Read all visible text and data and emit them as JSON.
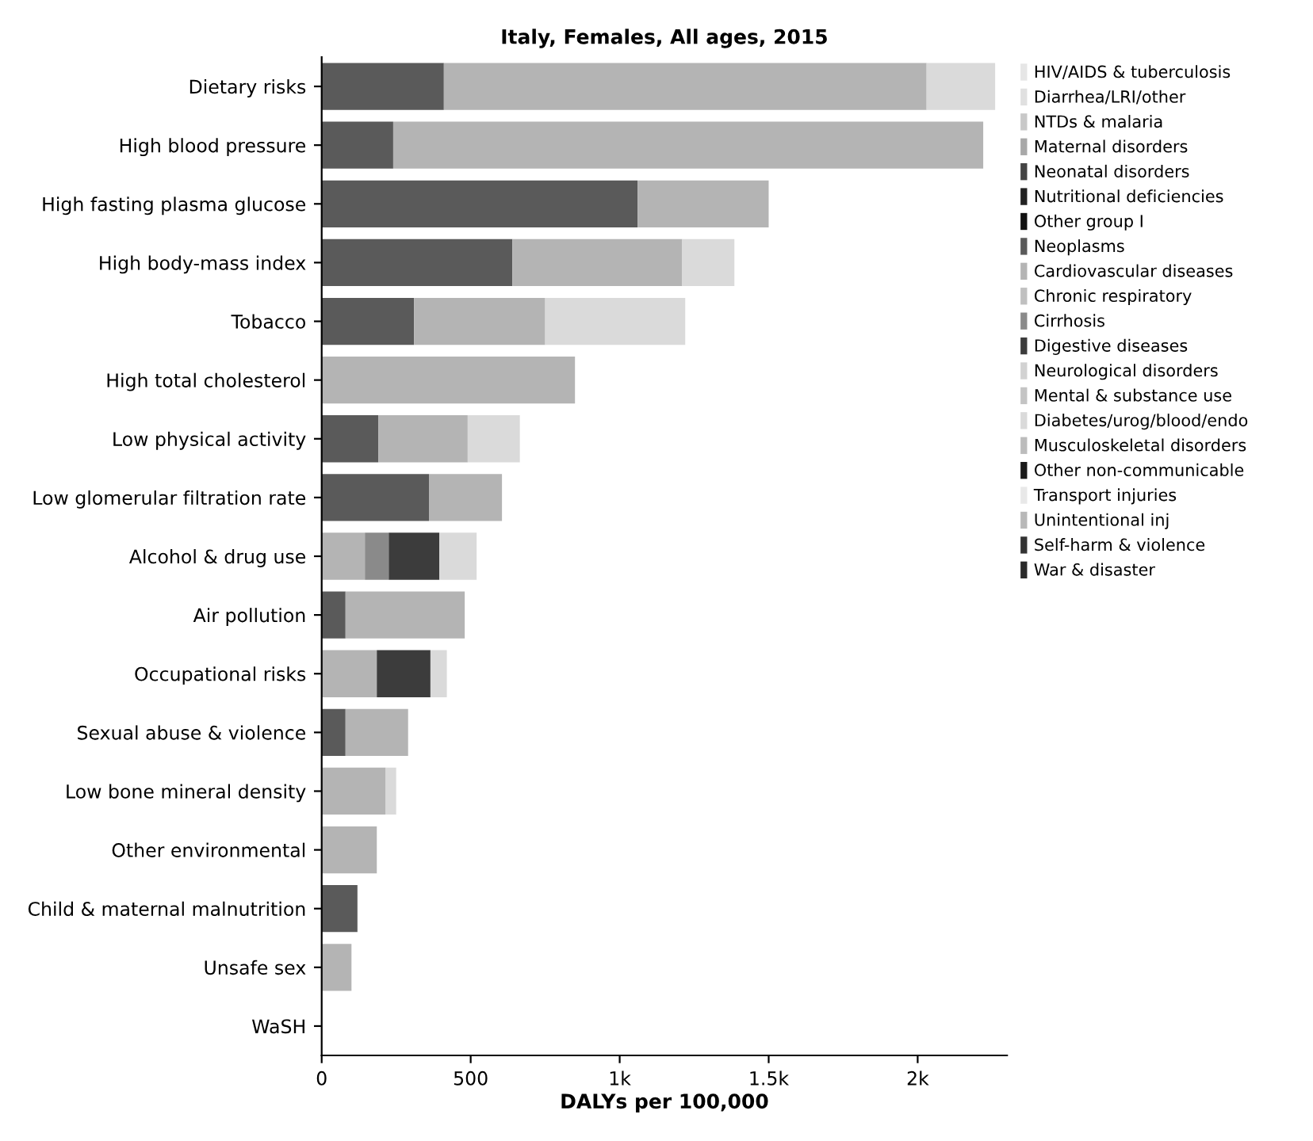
{
  "chart_data": {
    "type": "bar",
    "orientation": "horizontal",
    "stacked": true,
    "title": "Italy, Females, All ages, 2015",
    "xlabel": "DALYs per 100,000",
    "categories": [
      "Dietary risks",
      "High blood pressure",
      "High fasting plasma glucose",
      "High body-mass index",
      "Tobacco",
      "High total cholesterol",
      "Low physical activity",
      "Low glomerular filtration rate",
      "Alcohol & drug use",
      "Air pollution",
      "Occupational risks",
      "Sexual abuse & violence",
      "Low bone mineral density",
      "Other environmental",
      "Child & maternal malnutrition",
      "Unsafe sex",
      "WaSH"
    ],
    "series": [
      {
        "name": "HIV/AIDS & tuberculosis",
        "color": "#e6e6e6",
        "values": [
          null,
          null,
          null,
          null,
          null,
          null,
          null,
          null,
          null,
          null,
          null,
          null,
          null,
          null,
          null,
          null,
          null
        ]
      },
      {
        "name": "Diarrhea/LRI/other",
        "color": "#e0e0e0",
        "values": [
          null,
          null,
          null,
          null,
          null,
          null,
          null,
          null,
          null,
          null,
          null,
          null,
          null,
          null,
          null,
          null,
          null
        ]
      },
      {
        "name": "NTDs & malaria",
        "color": "#c8c8c8",
        "values": [
          null,
          null,
          null,
          null,
          null,
          null,
          null,
          null,
          null,
          null,
          null,
          null,
          null,
          null,
          null,
          null,
          null
        ]
      },
      {
        "name": "Maternal disorders",
        "color": "#a8a8a8",
        "values": [
          null,
          null,
          null,
          null,
          null,
          null,
          null,
          null,
          null,
          null,
          null,
          null,
          null,
          null,
          null,
          null,
          null
        ]
      },
      {
        "name": "Neonatal disorders",
        "color": "#444444",
        "values": [
          null,
          null,
          null,
          null,
          null,
          null,
          null,
          null,
          null,
          null,
          null,
          null,
          null,
          null,
          null,
          null,
          null
        ]
      },
      {
        "name": "Nutritional deficiencies",
        "color": "#222222",
        "values": [
          null,
          null,
          null,
          null,
          null,
          null,
          null,
          null,
          null,
          null,
          null,
          null,
          null,
          null,
          null,
          null,
          null
        ]
      },
      {
        "name": "Other group I",
        "color": "#111111",
        "values": [
          null,
          null,
          null,
          null,
          null,
          null,
          null,
          null,
          null,
          null,
          null,
          null,
          null,
          null,
          null,
          null,
          null
        ]
      },
      {
        "name": "Neoplasms",
        "color": "#5a5a5a",
        "values": [
          410,
          240,
          1060,
          640,
          310,
          null,
          190,
          360,
          null,
          80,
          null,
          80,
          null,
          null,
          120,
          null,
          null
        ]
      },
      {
        "name": "Cardiovascular diseases",
        "color": "#b4b4b4",
        "values": [
          1620,
          1980,
          440,
          570,
          440,
          850,
          300,
          245,
          145,
          400,
          185,
          210,
          215,
          185,
          null,
          100,
          null
        ]
      },
      {
        "name": "Chronic respiratory",
        "color": "#c0c0c0",
        "values": [
          null,
          null,
          null,
          null,
          null,
          null,
          null,
          null,
          null,
          null,
          null,
          null,
          null,
          null,
          null,
          null,
          null
        ]
      },
      {
        "name": "Cirrhosis",
        "color": "#8a8a8a",
        "values": [
          null,
          null,
          null,
          null,
          null,
          null,
          null,
          null,
          80,
          null,
          null,
          null,
          null,
          null,
          null,
          null,
          null
        ]
      },
      {
        "name": "Digestive diseases",
        "color": "#3c3c3c",
        "values": [
          null,
          null,
          null,
          null,
          null,
          null,
          null,
          null,
          170,
          null,
          180,
          null,
          null,
          null,
          null,
          null,
          null
        ]
      },
      {
        "name": "Neurological disorders",
        "color": "#d2d2d2",
        "values": [
          null,
          null,
          null,
          null,
          null,
          null,
          null,
          null,
          null,
          null,
          null,
          null,
          null,
          null,
          null,
          null,
          null
        ]
      },
      {
        "name": "Mental & substance use",
        "color": "#c4c4c4",
        "values": [
          null,
          null,
          null,
          null,
          null,
          null,
          null,
          null,
          null,
          null,
          null,
          null,
          null,
          null,
          null,
          null,
          null
        ]
      },
      {
        "name": "Diabetes/urog/blood/endo",
        "color": "#dadada",
        "values": [
          230,
          null,
          null,
          175,
          470,
          null,
          175,
          null,
          125,
          null,
          55,
          null,
          35,
          null,
          null,
          null,
          null
        ]
      },
      {
        "name": "Musculoskeletal disorders",
        "color": "#bcbcbc",
        "values": [
          null,
          null,
          null,
          null,
          null,
          null,
          null,
          null,
          null,
          null,
          null,
          null,
          null,
          null,
          null,
          null,
          null
        ]
      },
      {
        "name": "Other non-communicable",
        "color": "#1a1a1a",
        "values": [
          null,
          null,
          null,
          null,
          null,
          null,
          null,
          null,
          null,
          null,
          null,
          null,
          null,
          null,
          null,
          null,
          null
        ]
      },
      {
        "name": "Transport injuries",
        "color": "#e8e8e8",
        "values": [
          null,
          null,
          null,
          null,
          null,
          null,
          null,
          null,
          null,
          null,
          null,
          null,
          null,
          null,
          null,
          null,
          null
        ]
      },
      {
        "name": "Unintentional inj",
        "color": "#b8b8b8",
        "values": [
          null,
          null,
          null,
          null,
          null,
          null,
          null,
          null,
          null,
          null,
          null,
          null,
          null,
          null,
          null,
          null,
          null
        ]
      },
      {
        "name": "Self-harm & violence",
        "color": "#333333",
        "values": [
          null,
          null,
          null,
          null,
          null,
          null,
          null,
          null,
          null,
          null,
          null,
          null,
          null,
          null,
          null,
          null,
          null
        ]
      },
      {
        "name": "War & disaster",
        "color": "#2a2a2a",
        "values": [
          null,
          null,
          null,
          null,
          null,
          null,
          null,
          null,
          null,
          null,
          null,
          null,
          null,
          null,
          null,
          null,
          null
        ]
      }
    ],
    "xlim": [
      0,
      2300
    ],
    "xticks": [
      0,
      500,
      {
        "value": 1000,
        "label": "1k"
      },
      {
        "value": 1500,
        "label": "1.5k"
      },
      {
        "value": 2000,
        "label": "2k"
      }
    ],
    "grid": false,
    "legend": "right"
  }
}
